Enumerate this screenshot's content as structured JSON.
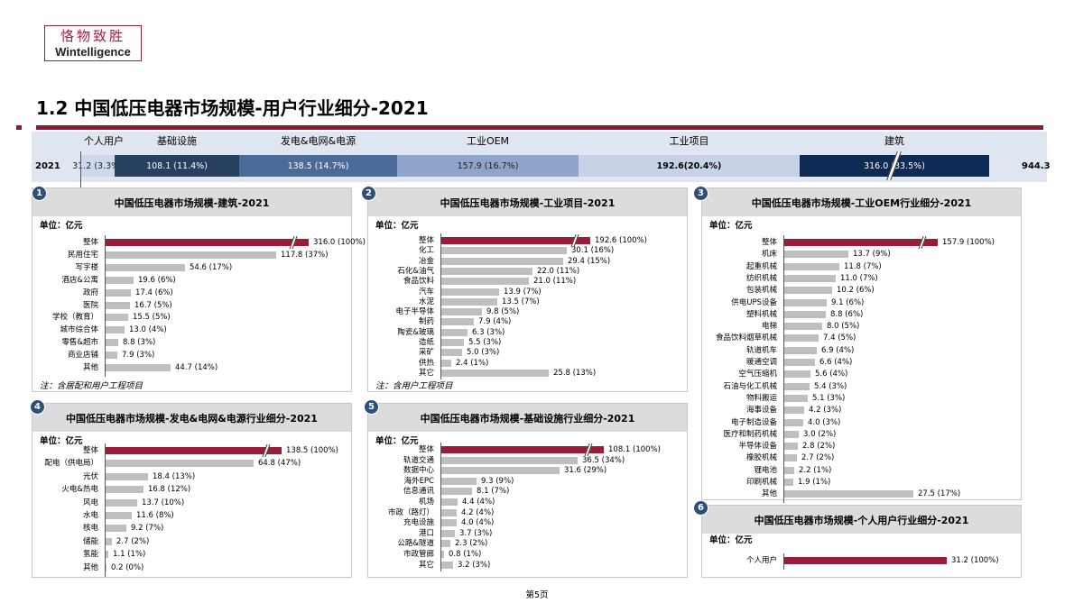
{
  "logo": {
    "cn": "恪物致胜",
    "en": "Wintelligence"
  },
  "title": "1.2 中国低压电器市场规模-用户行业细分-2021",
  "topbar": {
    "year": "2021",
    "total": "944.3",
    "segments": [
      {
        "name": "个人用户",
        "value": "31.2 (3.3%)",
        "color": "#cdd8ea",
        "text": "#222"
      },
      {
        "name": "基础设施",
        "value": "108.1 (11.4%)",
        "color": "#27405f",
        "text": "#fff"
      },
      {
        "name": "发电&电网&电源",
        "value": "138.5 (14.7%)",
        "color": "#4a6a9a",
        "text": "#fff"
      },
      {
        "name": "工业OEM",
        "value": "157.9 (16.7%)",
        "color": "#8ea4c8",
        "text": "#222"
      },
      {
        "name": "工业项目",
        "value": "192.6(20.4%)",
        "color": "#c7d2e6",
        "text": "#000"
      },
      {
        "name": "建筑",
        "value": "316.0 (33.5%)",
        "color": "#0e2a55",
        "text": "#fff"
      }
    ]
  },
  "panels": [
    {
      "num": "1",
      "title": "中国低压电器市场规模-建筑-2021",
      "unit": "单位：亿元",
      "note": "注：含居配和用户工程项目",
      "rows": [
        [
          "整体",
          316.0,
          "316.0 (100%)"
        ],
        [
          "民用住宅",
          117.8,
          "117.8 (37%)"
        ],
        [
          "写字楼",
          54.6,
          "54.6 (17%)"
        ],
        [
          "酒店&公寓",
          19.6,
          "19.6 (6%)"
        ],
        [
          "政府",
          17.4,
          "17.4 (6%)"
        ],
        [
          "医院",
          16.7,
          "16.7 (5%)"
        ],
        [
          "学校（教育）",
          15.5,
          "15.5 (5%)"
        ],
        [
          "城市综合体",
          13.0,
          "13.0 (4%)"
        ],
        [
          "零售&超市",
          8.8,
          "8.8 (3%)"
        ],
        [
          "商业店铺",
          7.9,
          "7.9 (3%)"
        ],
        [
          "其他",
          44.7,
          "44.7 (14%)"
        ]
      ]
    },
    {
      "num": "2",
      "title": "中国低压电器市场规模-工业项目-2021",
      "unit": "单位：亿元",
      "note": "注：含用户工程项目",
      "rows": [
        [
          "整体",
          192.6,
          "192.6 (100%)"
        ],
        [
          "化工",
          30.1,
          "30.1 (16%)"
        ],
        [
          "冶金",
          29.4,
          "29.4 (15%)"
        ],
        [
          "石化&油气",
          22.0,
          "22.0 (11%)"
        ],
        [
          "食品饮料",
          21.0,
          "21.0 (11%)"
        ],
        [
          "汽车",
          13.9,
          "13.9 (7%)"
        ],
        [
          "水泥",
          13.5,
          "13.5 (7%)"
        ],
        [
          "电子半导体",
          9.8,
          "9.8 (5%)"
        ],
        [
          "制药",
          7.9,
          "7.9 (4%)"
        ],
        [
          "陶瓷&玻璃",
          6.3,
          "6.3 (3%)"
        ],
        [
          "造纸",
          5.5,
          "5.5 (3%)"
        ],
        [
          "采矿",
          5.0,
          "5.0 (3%)"
        ],
        [
          "供热",
          2.4,
          "2.4 (1%)"
        ],
        [
          "其它",
          25.8,
          "25.8 (13%)"
        ]
      ]
    },
    {
      "num": "3",
      "title": "中国低压电器市场规模-工业OEM行业细分-2021",
      "unit": "单位：亿元",
      "note": "",
      "rows": [
        [
          "整体",
          157.9,
          "157.9 (100%)"
        ],
        [
          "机床",
          13.7,
          "13.7 (9%)"
        ],
        [
          "起重机械",
          11.8,
          "11.8 (7%)"
        ],
        [
          "纺织机械",
          11.0,
          "11.0 (7%)"
        ],
        [
          "包装机械",
          10.2,
          "10.2 (6%)"
        ],
        [
          "供电UPS设备",
          9.1,
          "9.1 (6%)"
        ],
        [
          "塑料机械",
          8.8,
          "8.8 (6%)"
        ],
        [
          "电梯",
          8.0,
          "8.0 (5%)"
        ],
        [
          "食品饮料烟草机械",
          7.4,
          "7.4 (5%)"
        ],
        [
          "轨道机车",
          6.9,
          "6.9 (4%)"
        ],
        [
          "暖通空调",
          6.6,
          "6.6 (4%)"
        ],
        [
          "空气压缩机",
          5.6,
          "5.6 (4%)"
        ],
        [
          "石油与化工机械",
          5.4,
          "5.4 (3%)"
        ],
        [
          "物料搬运",
          5.1,
          "5.1 (3%)"
        ],
        [
          "海事设备",
          4.2,
          "4.2 (3%)"
        ],
        [
          "电子制造设备",
          4.0,
          "4.0 (3%)"
        ],
        [
          "医疗和制药机械",
          3.0,
          "3.0 (2%)"
        ],
        [
          "半导体设备",
          2.8,
          "2.8 (2%)"
        ],
        [
          "橡胶机械",
          2.7,
          "2.7 (2%)"
        ],
        [
          "锂电池",
          2.2,
          "2.2 (1%)"
        ],
        [
          "印刷机械",
          1.9,
          "1.9 (1%)"
        ],
        [
          "其他",
          27.5,
          "27.5 (17%)"
        ]
      ]
    },
    {
      "num": "4",
      "title": "中国低压电器市场规模-发电&电网&电源行业细分-2021",
      "unit": "单位：亿元",
      "note": "",
      "rows": [
        [
          "整体",
          138.5,
          "138.5 (100%)"
        ],
        [
          "配电（供电局）",
          64.8,
          "64.8 (47%)"
        ],
        [
          "光伏",
          18.4,
          "18.4 (13%)"
        ],
        [
          "火电&热电",
          16.8,
          "16.8 (12%)"
        ],
        [
          "风电",
          13.7,
          "13.7 (10%)"
        ],
        [
          "水电",
          11.6,
          "11.6 (8%)"
        ],
        [
          "核电",
          9.2,
          "9.2 (7%)"
        ],
        [
          "储能",
          2.7,
          "2.7 (2%)"
        ],
        [
          "氢能",
          1.1,
          "1.1 (1%)"
        ],
        [
          "其他",
          0.2,
          "0.2 (0%)"
        ]
      ]
    },
    {
      "num": "5",
      "title": "中国低压电器市场规模-基础设施行业细分-2021",
      "unit": "单位：亿元",
      "note": "",
      "rows": [
        [
          "整体",
          108.1,
          "108.1 (100%)"
        ],
        [
          "轨道交通",
          36.5,
          "36.5 (34%)"
        ],
        [
          "数据中心",
          31.6,
          "31.6 (29%)"
        ],
        [
          "海外EPC",
          9.3,
          "9.3 (9%)"
        ],
        [
          "信息通讯",
          8.1,
          "8.1 (7%)"
        ],
        [
          "机场",
          4.4,
          "4.4 (4%)"
        ],
        [
          "市政（路灯）",
          4.2,
          "4.2 (4%)"
        ],
        [
          "充电设施",
          4.0,
          "4.0 (4%)"
        ],
        [
          "港口",
          3.7,
          "3.7 (3%)"
        ],
        [
          "公路&隧道",
          2.3,
          "2.3 (2%)"
        ],
        [
          "市政管廊",
          0.8,
          "0.8 (1%)"
        ],
        [
          "其它",
          3.2,
          "3.2 (3%)"
        ]
      ]
    },
    {
      "num": "6",
      "title": "中国低压电器市场规模-个人用户行业细分-2021",
      "unit": "单位：亿元",
      "note": "",
      "rows": [
        [
          "个人用户",
          31.2,
          "31.2 (100%)"
        ]
      ]
    }
  ],
  "page": "第5页"
}
